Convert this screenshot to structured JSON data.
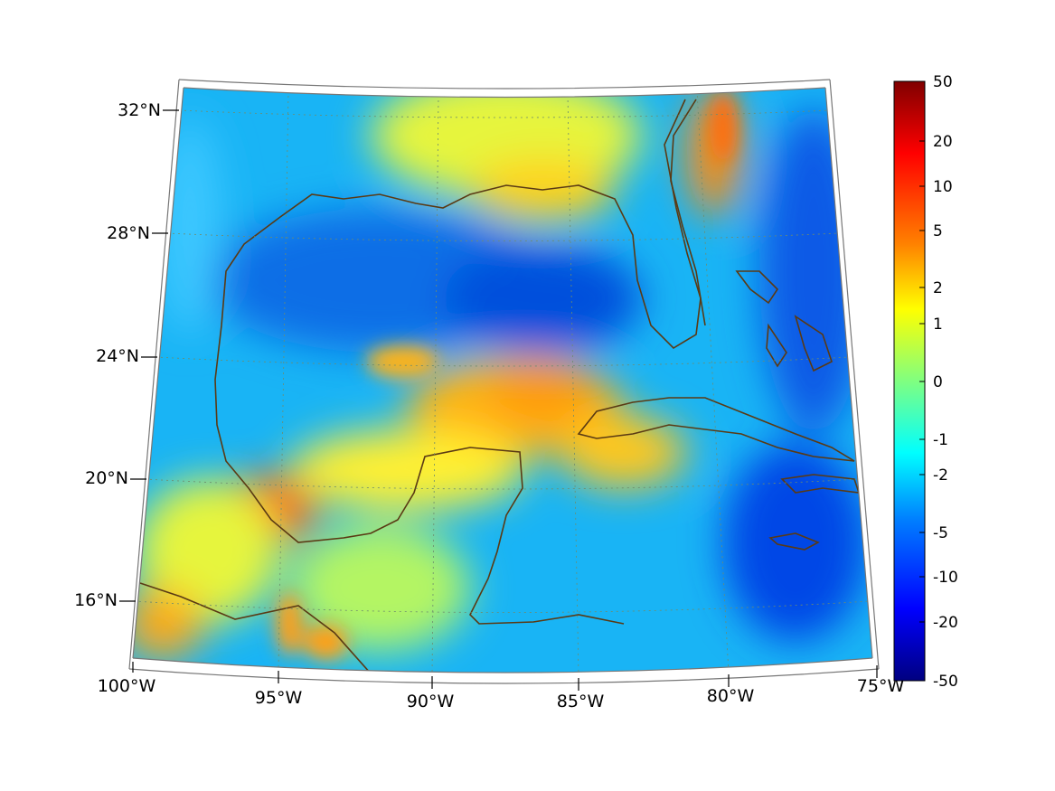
{
  "map": {
    "lon_labels": [
      "100°W",
      "95°W",
      "90°W",
      "85°W",
      "80°W",
      "75°W"
    ],
    "lat_labels": [
      "16°N",
      "20°N",
      "24°N",
      "28°N",
      "32°N"
    ],
    "extent": {
      "lon_min": -100,
      "lon_max": -75,
      "lat_min": 14,
      "lat_max": 33
    },
    "colormap": "jet",
    "coastline_color": "#5a3a14"
  },
  "colorbar": {
    "tick_labels": [
      "50",
      "20",
      "10",
      "5",
      "2",
      "1",
      "0",
      "-1",
      "-2",
      "-5",
      "-10",
      "-20",
      "-50"
    ],
    "range": [
      -50,
      50
    ],
    "scale": "symmetric-log"
  }
}
